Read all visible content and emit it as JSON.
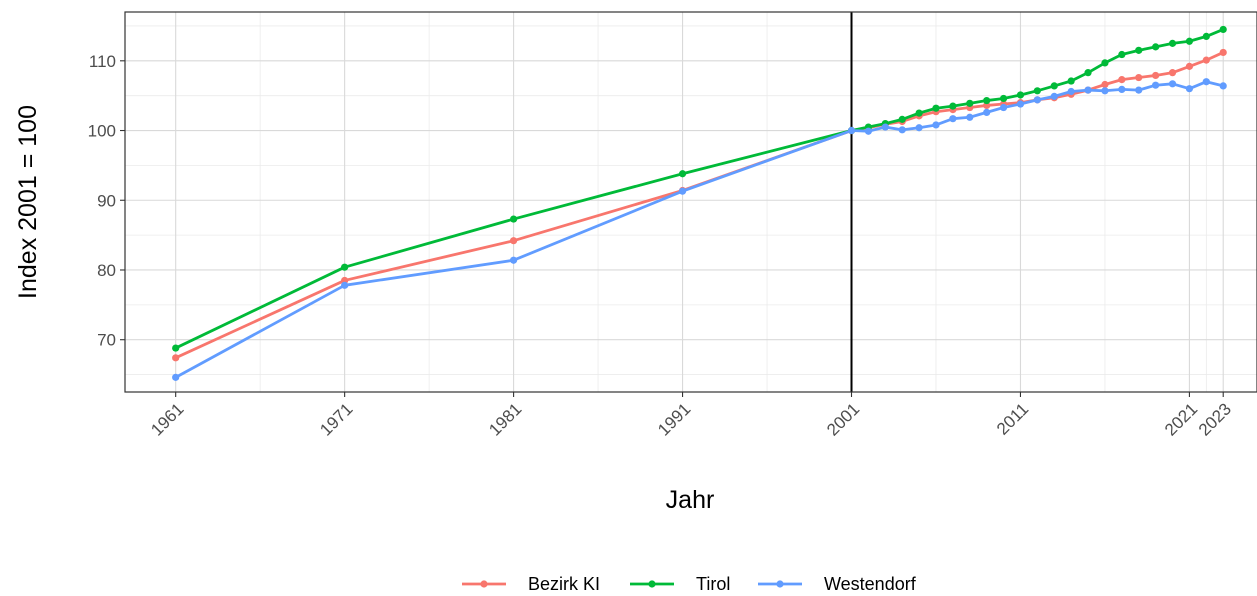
{
  "chart_data": {
    "type": "line",
    "title": "",
    "xlabel": "Jahr",
    "ylabel": "Index 2001 = 100",
    "xlim": [
      1958,
      2025
    ],
    "ylim": [
      62.5,
      117
    ],
    "x_ticks": [
      1961,
      1971,
      1981,
      1991,
      2001,
      2011,
      2021,
      2023
    ],
    "x_tick_labels": [
      "1961",
      "1971",
      "1981",
      "1991",
      "2001",
      "2011",
      "2021",
      "2023"
    ],
    "y_ticks": [
      70,
      80,
      90,
      100,
      110
    ],
    "y_tick_labels": [
      "70",
      "80",
      "90",
      "100",
      "110"
    ],
    "grid": true,
    "reference_line_x": 2001,
    "legend_position": "bottom",
    "series": [
      {
        "name": "Bezirk KI",
        "color": "#f8766d",
        "points": [
          [
            1961,
            67.4
          ],
          [
            1971,
            78.5
          ],
          [
            1981,
            84.2
          ],
          [
            1991,
            91.4
          ],
          [
            2001,
            100
          ],
          [
            2002,
            100.4
          ],
          [
            2003,
            100.9
          ],
          [
            2004,
            101.3
          ],
          [
            2005,
            102.1
          ],
          [
            2006,
            102.7
          ],
          [
            2007,
            103.0
          ],
          [
            2008,
            103.3
          ],
          [
            2009,
            103.6
          ],
          [
            2010,
            103.8
          ],
          [
            2011,
            104.0
          ],
          [
            2012,
            104.4
          ],
          [
            2013,
            104.7
          ],
          [
            2014,
            105.2
          ],
          [
            2015,
            105.8
          ],
          [
            2016,
            106.6
          ],
          [
            2017,
            107.3
          ],
          [
            2018,
            107.6
          ],
          [
            2019,
            107.9
          ],
          [
            2020,
            108.3
          ],
          [
            2021,
            109.2
          ],
          [
            2022,
            110.1
          ],
          [
            2023,
            111.2
          ]
        ]
      },
      {
        "name": "Tirol",
        "color": "#00ba38",
        "points": [
          [
            1961,
            68.8
          ],
          [
            1971,
            80.4
          ],
          [
            1981,
            87.3
          ],
          [
            1991,
            93.8
          ],
          [
            2001,
            100
          ],
          [
            2002,
            100.5
          ],
          [
            2003,
            101.0
          ],
          [
            2004,
            101.6
          ],
          [
            2005,
            102.5
          ],
          [
            2006,
            103.2
          ],
          [
            2007,
            103.5
          ],
          [
            2008,
            103.9
          ],
          [
            2009,
            104.3
          ],
          [
            2010,
            104.6
          ],
          [
            2011,
            105.1
          ],
          [
            2012,
            105.7
          ],
          [
            2013,
            106.4
          ],
          [
            2014,
            107.1
          ],
          [
            2015,
            108.3
          ],
          [
            2016,
            109.7
          ],
          [
            2017,
            110.9
          ],
          [
            2018,
            111.5
          ],
          [
            2019,
            112.0
          ],
          [
            2020,
            112.5
          ],
          [
            2021,
            112.8
          ],
          [
            2022,
            113.5
          ],
          [
            2023,
            114.5
          ]
        ]
      },
      {
        "name": "Westendorf",
        "color": "#619cff",
        "points": [
          [
            1961,
            64.6
          ],
          [
            1971,
            77.8
          ],
          [
            1981,
            81.4
          ],
          [
            1991,
            91.3
          ],
          [
            2001,
            100
          ],
          [
            2002,
            99.9
          ],
          [
            2003,
            100.5
          ],
          [
            2004,
            100.1
          ],
          [
            2005,
            100.4
          ],
          [
            2006,
            100.8
          ],
          [
            2007,
            101.7
          ],
          [
            2008,
            101.9
          ],
          [
            2009,
            102.6
          ],
          [
            2010,
            103.3
          ],
          [
            2011,
            103.8
          ],
          [
            2012,
            104.4
          ],
          [
            2013,
            104.9
          ],
          [
            2014,
            105.6
          ],
          [
            2015,
            105.8
          ],
          [
            2016,
            105.7
          ],
          [
            2017,
            105.9
          ],
          [
            2018,
            105.8
          ],
          [
            2019,
            106.5
          ],
          [
            2020,
            106.7
          ],
          [
            2021,
            106.0
          ],
          [
            2022,
            107.0
          ],
          [
            2023,
            106.4
          ]
        ]
      }
    ]
  }
}
